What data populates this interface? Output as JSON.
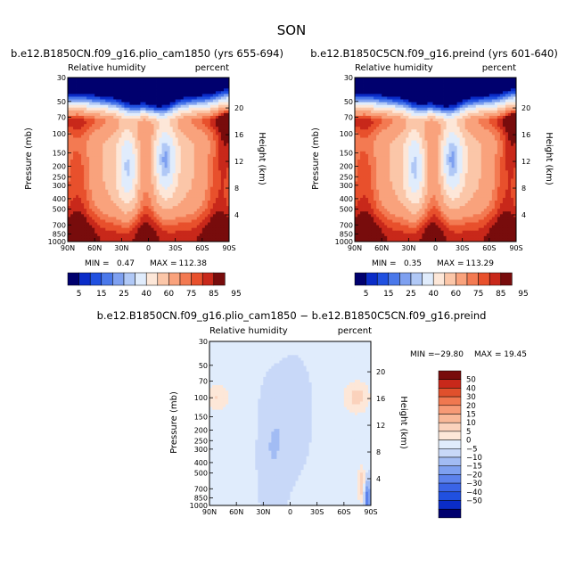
{
  "page": {
    "title": "SON"
  },
  "panels": [
    {
      "title": "b.e12.B1850CN.f09_g16.plio_cam1850 (yrs 655-694)",
      "left_label": "Relative humidity",
      "right_label": "percent",
      "ylabel": "Pressure (mb)",
      "y2label": "Height (km)",
      "min_label": "MIN =",
      "min_value": "0.47",
      "max_label": "MAX =",
      "max_value": "112.38"
    },
    {
      "title": "b.e12.B1850C5CN.f09_g16.preind (yrs 601-640)",
      "left_label": "Relative humidity",
      "right_label": "percent",
      "ylabel": "Pressure (mb)",
      "y2label": "Height (km)",
      "min_label": "MIN =",
      "min_value": "0.35",
      "max_label": "MAX =",
      "max_value": "113.29"
    },
    {
      "title": "b.e12.B1850CN.f09_g16.plio_cam1850 − b.e12.B1850C5CN.f09_g16.preind",
      "left_label": "Relative humidity",
      "right_label": "percent",
      "ylabel": "Pressure (mb)",
      "y2label": "Height (km)",
      "min_label": "MIN =",
      "min_value": "−29.80",
      "max_label": "MAX =",
      "max_value": "19.45"
    }
  ],
  "colors": {
    "abs_scale": [
      "#00006e",
      "#0a2cc8",
      "#2050e0",
      "#4a78ea",
      "#7ea0f0",
      "#b0c8f6",
      "#e0ecfc",
      "#fde7d8",
      "#fbc6a8",
      "#f9a27c",
      "#f37a52",
      "#e8502c",
      "#c8281a",
      "#780c0c"
    ],
    "diff_scale": [
      "#00006e",
      "#0a2cc8",
      "#2050e0",
      "#3a64e6",
      "#5c82ec",
      "#7ea0f0",
      "#a2bcf4",
      "#c8d8f8",
      "#e0ecfc",
      "#fde7d8",
      "#fbd2bc",
      "#f9b898",
      "#f79a76",
      "#f07850",
      "#e0502c",
      "#c8281a",
      "#780c0c"
    ]
  },
  "chart_data": [
    {
      "type": "heatmap",
      "title": "b.e12.B1850CN.f09_g16.plio_cam1850 (yrs 655-694)",
      "variable": "Relative humidity",
      "units": "percent",
      "x_ticks": [
        "90N",
        "60N",
        "30N",
        "0",
        "30S",
        "60S",
        "90S"
      ],
      "x_values": [
        90,
        60,
        30,
        0,
        -30,
        -60,
        -90
      ],
      "y_ticks": [
        "30",
        "50",
        "70",
        "100",
        "150",
        "200",
        "250",
        "300",
        "400",
        "500",
        "700",
        "850",
        "1000"
      ],
      "y_values": [
        30,
        50,
        70,
        100,
        150,
        200,
        250,
        300,
        400,
        500,
        700,
        850,
        1000
      ],
      "y_scale": "log",
      "ylim": [
        1000,
        30
      ],
      "y2_ticks": [
        "4",
        "8",
        "12",
        "16",
        "20"
      ],
      "contour_levels": [
        5,
        10,
        15,
        20,
        25,
        30,
        40,
        50,
        60,
        70,
        75,
        80,
        85,
        90,
        95
      ],
      "colorbar_labels": [
        "5",
        "15",
        "25",
        "40",
        "60",
        "75",
        "85",
        "95"
      ],
      "min": 0.47,
      "max": 112.38
    },
    {
      "type": "heatmap",
      "title": "b.e12.B1850C5CN.f09_g16.preind (yrs 601-640)",
      "variable": "Relative humidity",
      "units": "percent",
      "x_ticks": [
        "90N",
        "60N",
        "30N",
        "0",
        "30S",
        "60S",
        "90S"
      ],
      "x_values": [
        90,
        60,
        30,
        0,
        -30,
        -60,
        -90
      ],
      "y_ticks": [
        "30",
        "50",
        "70",
        "100",
        "150",
        "200",
        "250",
        "300",
        "400",
        "500",
        "700",
        "850",
        "1000"
      ],
      "y_values": [
        30,
        50,
        70,
        100,
        150,
        200,
        250,
        300,
        400,
        500,
        700,
        850,
        1000
      ],
      "y_scale": "log",
      "ylim": [
        1000,
        30
      ],
      "y2_ticks": [
        "4",
        "8",
        "12",
        "16",
        "20"
      ],
      "contour_levels": [
        5,
        10,
        15,
        20,
        25,
        30,
        40,
        50,
        60,
        70,
        75,
        80,
        85,
        90,
        95
      ],
      "colorbar_labels": [
        "5",
        "15",
        "25",
        "40",
        "60",
        "75",
        "85",
        "95"
      ],
      "min": 0.35,
      "max": 113.29
    },
    {
      "type": "heatmap",
      "title": "b.e12.B1850CN.f09_g16.plio_cam1850 − b.e12.B1850C5CN.f09_g16.preind",
      "variable": "Relative humidity",
      "units": "percent",
      "x_ticks": [
        "90N",
        "60N",
        "30N",
        "0",
        "30S",
        "60S",
        "90S"
      ],
      "x_values": [
        90,
        60,
        30,
        0,
        -30,
        -60,
        -90
      ],
      "y_ticks": [
        "30",
        "50",
        "70",
        "100",
        "150",
        "200",
        "250",
        "300",
        "400",
        "500",
        "700",
        "850",
        "1000"
      ],
      "y_values": [
        30,
        50,
        70,
        100,
        150,
        200,
        250,
        300,
        400,
        500,
        700,
        850,
        1000
      ],
      "y_scale": "log",
      "ylim": [
        1000,
        30
      ],
      "y2_ticks": [
        "4",
        "8",
        "12",
        "16",
        "20"
      ],
      "contour_levels": [
        -50,
        -40,
        -30,
        -20,
        -15,
        -10,
        -5,
        0,
        5,
        10,
        15,
        20,
        30,
        40,
        50
      ],
      "colorbar_labels": [
        "50",
        "40",
        "30",
        "20",
        "15",
        "10",
        "5",
        "0",
        "−5",
        "−10",
        "−15",
        "−20",
        "−30",
        "−40",
        "−50"
      ],
      "min": -29.8,
      "max": 19.45
    }
  ]
}
